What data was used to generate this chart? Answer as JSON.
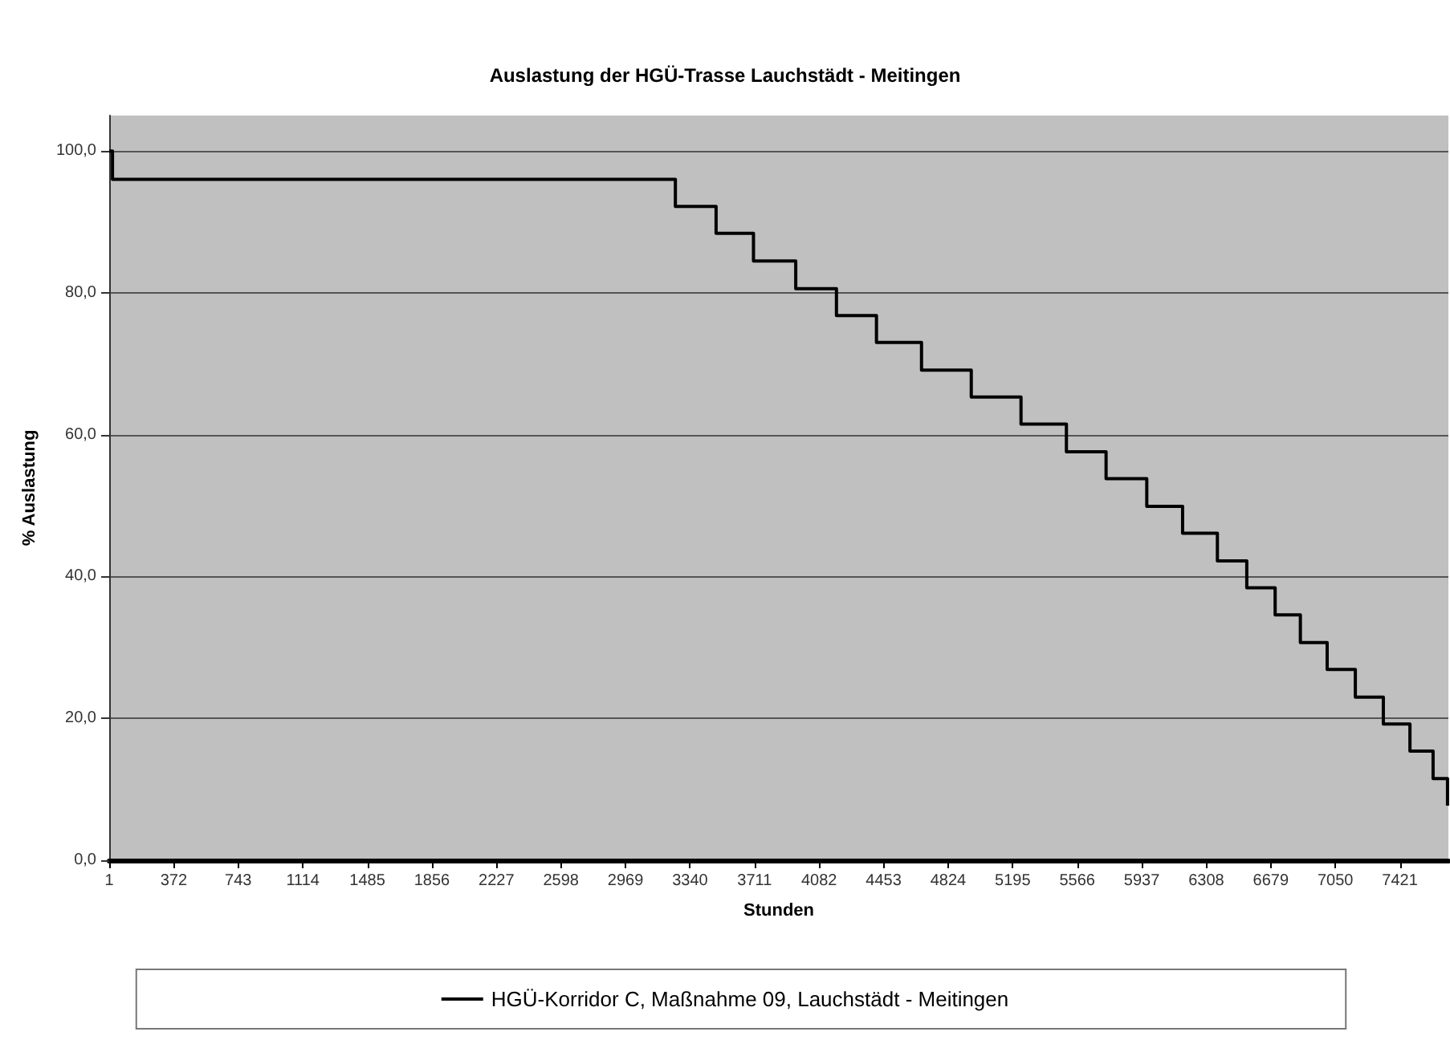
{
  "chart_data": {
    "type": "step",
    "title": "Auslastung der HGÜ-Trasse Lauchstädt - Meitingen",
    "xlabel": "Stunden",
    "ylabel": "% Auslastung",
    "series": [
      {
        "name": "HGÜ-Korridor C, Maßnahme 09, Lauchstädt - Meitingen",
        "color": "#000000",
        "x": [
          1,
          20,
          3256,
          3490,
          3705,
          3948,
          4182,
          4412,
          4671,
          4957,
          5243,
          5504,
          5732,
          5966,
          6172,
          6372,
          6541,
          6704,
          6849,
          7003,
          7165,
          7326,
          7479,
          7612,
          7695
        ],
        "values": [
          100,
          96.0,
          92.2,
          88.4,
          84.5,
          80.6,
          76.8,
          73.0,
          69.1,
          65.3,
          61.5,
          57.6,
          53.8,
          49.9,
          46.1,
          42.2,
          38.4,
          34.6,
          30.7,
          26.9,
          23.0,
          19.2,
          15.4,
          11.5,
          7.7
        ]
      }
    ],
    "xlim": [
      1,
      7700
    ],
    "xticks": [
      1,
      372,
      743,
      1114,
      1485,
      1856,
      2227,
      2598,
      2969,
      3340,
      3711,
      4082,
      4453,
      4824,
      5195,
      5566,
      5937,
      6308,
      6679,
      7050,
      7421
    ],
    "ylim": [
      0,
      105
    ],
    "yticks": [
      {
        "value": 0,
        "label": "0,0"
      },
      {
        "value": 20,
        "label": "20,0"
      },
      {
        "value": 40,
        "label": "40,0"
      },
      {
        "value": 60,
        "label": "60,0"
      },
      {
        "value": 80,
        "label": "80,0"
      },
      {
        "value": 100,
        "label": "100,0"
      }
    ],
    "grid": "y",
    "legend": "bottom",
    "marker": "none",
    "line_style": "solid"
  }
}
